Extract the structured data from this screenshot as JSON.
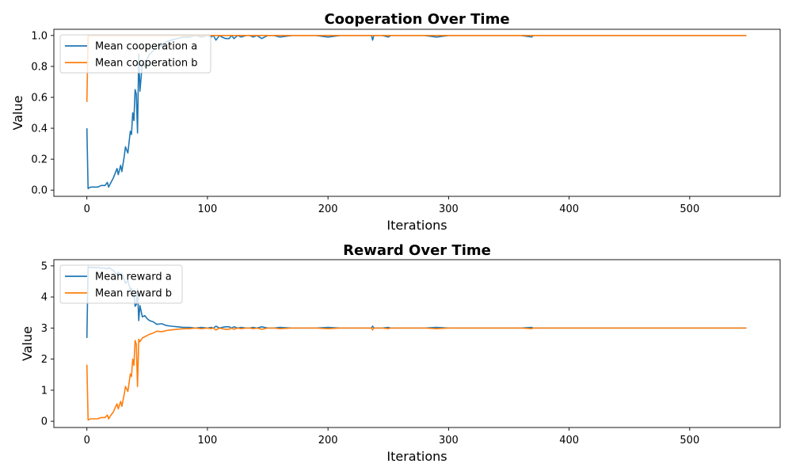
{
  "chart_data": [
    {
      "type": "line",
      "title": "Cooperation Over Time",
      "xlabel": "Iterations",
      "ylabel": "Value",
      "xlim": [
        -27.4,
        575
      ],
      "ylim": [
        -0.04,
        1.04
      ],
      "xticks": [
        "0",
        "100",
        "200",
        "300",
        "400",
        "500"
      ],
      "yticks": [
        "0.0",
        "0.2",
        "0.4",
        "0.6",
        "0.8",
        "1.0"
      ],
      "grid": false,
      "legend_position": "top-left",
      "series": [
        {
          "name": "Mean cooperation a",
          "color": "#1f77b4",
          "x": [
            0,
            1,
            3,
            6,
            9,
            12,
            15,
            17,
            18,
            20,
            22,
            23,
            25,
            26,
            28,
            29,
            31,
            32,
            34,
            36,
            37,
            38,
            39,
            40,
            41,
            42,
            43,
            44,
            46,
            48,
            50,
            52,
            55,
            58,
            62,
            66,
            70,
            75,
            80,
            85,
            90,
            95,
            100,
            103,
            105,
            107,
            110,
            112,
            115,
            118,
            120,
            122,
            125,
            128,
            132,
            135,
            138,
            141,
            145,
            150,
            155,
            160,
            170,
            180,
            190,
            200,
            210,
            220,
            230,
            236,
            237,
            238,
            245,
            250,
            252,
            260,
            270,
            280,
            290,
            300,
            320,
            340,
            360,
            369,
            370,
            380,
            400,
            420,
            440,
            460,
            480,
            500,
            520,
            547
          ],
          "y": [
            0.4,
            0.01,
            0.02,
            0.02,
            0.02,
            0.03,
            0.03,
            0.05,
            0.02,
            0.05,
            0.08,
            0.1,
            0.14,
            0.1,
            0.16,
            0.12,
            0.22,
            0.28,
            0.24,
            0.38,
            0.36,
            0.5,
            0.45,
            0.65,
            0.62,
            0.37,
            0.88,
            0.64,
            0.82,
            0.8,
            0.85,
            0.88,
            0.9,
            0.94,
            0.93,
            0.96,
            0.97,
            0.98,
            0.99,
            0.99,
            1.0,
            0.99,
            1.0,
            0.99,
            1.0,
            0.97,
            1.0,
            0.99,
            0.98,
            0.98,
            1.0,
            0.98,
            1.0,
            0.99,
            1.0,
            1.0,
            0.99,
            1.0,
            0.98,
            1.0,
            1.0,
            0.99,
            1.0,
            1.0,
            1.0,
            0.99,
            1.0,
            1.0,
            1.0,
            1.0,
            0.97,
            1.0,
            1.0,
            0.99,
            1.0,
            1.0,
            1.0,
            1.0,
            0.99,
            1.0,
            1.0,
            1.0,
            1.0,
            0.99,
            1.0,
            1.0,
            1.0,
            1.0,
            1.0,
            1.0,
            1.0,
            1.0,
            1.0,
            1.0
          ]
        },
        {
          "name": "Mean cooperation b",
          "color": "#ff7f0e",
          "x": [
            0,
            1,
            2,
            547
          ],
          "y": [
            0.57,
            1.0,
            1.0,
            1.0
          ]
        }
      ]
    },
    {
      "type": "line",
      "title": "Reward Over Time",
      "xlabel": "Iterations",
      "ylabel": "Value",
      "xlim": [
        -27.4,
        575
      ],
      "ylim": [
        -0.2,
        5.2
      ],
      "xticks": [
        "0",
        "100",
        "200",
        "300",
        "400",
        "500"
      ],
      "yticks": [
        "0",
        "1",
        "2",
        "3",
        "4",
        "5"
      ],
      "grid": false,
      "legend_position": "top-left",
      "series": [
        {
          "name": "Mean reward a",
          "color": "#1f77b4",
          "x": [
            0,
            1,
            3,
            6,
            9,
            12,
            15,
            17,
            18,
            20,
            22,
            23,
            25,
            26,
            28,
            29,
            31,
            32,
            34,
            36,
            37,
            38,
            39,
            40,
            41,
            42,
            43,
            44,
            46,
            48,
            50,
            52,
            55,
            58,
            62,
            66,
            70,
            75,
            80,
            85,
            90,
            95,
            100,
            103,
            105,
            107,
            110,
            112,
            115,
            118,
            120,
            122,
            125,
            128,
            132,
            135,
            138,
            141,
            145,
            150,
            155,
            160,
            170,
            180,
            190,
            200,
            210,
            220,
            230,
            236,
            237,
            238,
            245,
            250,
            252,
            260,
            270,
            280,
            290,
            300,
            320,
            340,
            360,
            369,
            370,
            380,
            400,
            420,
            440,
            460,
            480,
            500,
            520,
            547
          ],
          "y": [
            2.68,
            4.97,
            4.95,
            4.95,
            4.95,
            4.93,
            4.93,
            4.9,
            4.95,
            4.9,
            4.85,
            4.8,
            4.72,
            4.8,
            4.68,
            4.76,
            4.56,
            4.44,
            4.52,
            4.24,
            4.28,
            4.0,
            4.1,
            3.7,
            3.76,
            4.26,
            3.24,
            3.72,
            3.36,
            3.4,
            3.3,
            3.24,
            3.2,
            3.12,
            3.14,
            3.08,
            3.06,
            3.04,
            3.02,
            3.02,
            3.0,
            3.02,
            3.0,
            3.02,
            3.0,
            3.06,
            3.0,
            3.02,
            3.04,
            3.04,
            3.0,
            3.04,
            3.0,
            3.02,
            3.0,
            3.0,
            3.02,
            3.0,
            3.04,
            3.0,
            3.0,
            3.02,
            3.0,
            3.0,
            3.0,
            3.02,
            3.0,
            3.0,
            3.0,
            3.0,
            3.06,
            3.0,
            3.0,
            3.02,
            3.0,
            3.0,
            3.0,
            3.0,
            3.02,
            3.0,
            3.0,
            3.0,
            3.0,
            3.02,
            3.0,
            3.0,
            3.0,
            3.0,
            3.0,
            3.0,
            3.0,
            3.0,
            3.0,
            3.0
          ]
        },
        {
          "name": "Mean reward b",
          "color": "#ff7f0e",
          "x": [
            0,
            1,
            3,
            6,
            9,
            12,
            15,
            17,
            18,
            20,
            22,
            23,
            25,
            26,
            28,
            29,
            31,
            32,
            34,
            36,
            37,
            38,
            39,
            40,
            41,
            42,
            43,
            44,
            46,
            48,
            50,
            52,
            55,
            58,
            62,
            66,
            70,
            75,
            80,
            85,
            90,
            95,
            100,
            103,
            105,
            107,
            110,
            112,
            115,
            118,
            120,
            122,
            125,
            128,
            132,
            135,
            138,
            141,
            145,
            150,
            155,
            160,
            170,
            180,
            190,
            200,
            210,
            220,
            230,
            236,
            237,
            238,
            245,
            250,
            252,
            260,
            270,
            280,
            290,
            300,
            320,
            340,
            360,
            369,
            370,
            380,
            400,
            420,
            440,
            460,
            480,
            500,
            520,
            547
          ],
          "y": [
            1.82,
            0.04,
            0.08,
            0.08,
            0.08,
            0.12,
            0.12,
            0.2,
            0.08,
            0.2,
            0.3,
            0.4,
            0.56,
            0.4,
            0.64,
            0.48,
            0.88,
            1.12,
            0.96,
            1.52,
            1.44,
            2.0,
            1.8,
            2.6,
            2.48,
            1.12,
            2.64,
            2.56,
            2.68,
            2.72,
            2.76,
            2.8,
            2.84,
            2.9,
            2.88,
            2.92,
            2.94,
            2.96,
            2.98,
            2.98,
            3.0,
            2.98,
            3.0,
            2.98,
            3.0,
            2.94,
            3.0,
            2.98,
            2.96,
            2.96,
            3.0,
            2.96,
            3.0,
            2.98,
            3.0,
            3.0,
            2.98,
            3.0,
            2.96,
            3.0,
            3.0,
            2.98,
            3.0,
            3.0,
            3.0,
            2.98,
            3.0,
            3.0,
            3.0,
            3.0,
            2.94,
            3.0,
            3.0,
            2.98,
            3.0,
            3.0,
            3.0,
            3.0,
            2.98,
            3.0,
            3.0,
            3.0,
            3.0,
            2.98,
            3.0,
            3.0,
            3.0,
            3.0,
            3.0,
            3.0,
            3.0,
            3.0,
            3.0,
            3.0
          ]
        }
      ]
    }
  ]
}
